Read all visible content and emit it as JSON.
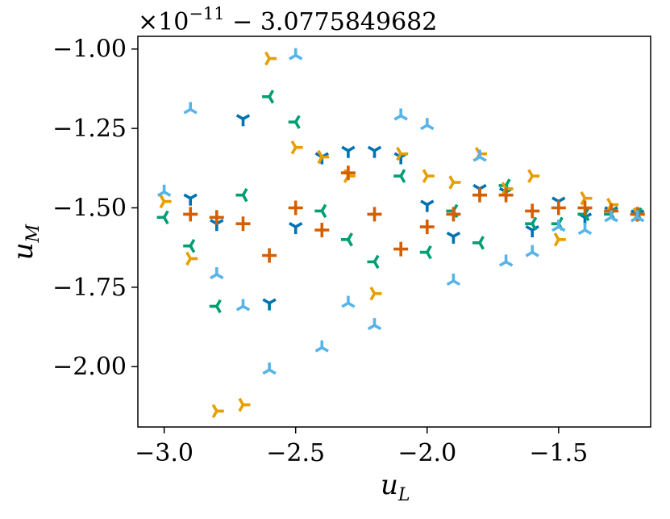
{
  "chart_data": {
    "type": "scatter",
    "title": "",
    "offset_text": {
      "prefix": "×10",
      "exponent": "−11",
      "suffix": " − 3.0775849682"
    },
    "xlabel": "u",
    "xlabel_sub": "L",
    "ylabel": "u",
    "ylabel_sub": "M",
    "xlim": [
      -3.1,
      -1.15
    ],
    "ylim": [
      -2.19,
      -0.96
    ],
    "xticks": [
      -3.0,
      -2.5,
      -2.0,
      -1.5
    ],
    "xtick_labels": [
      "−3.0",
      "−2.5",
      "−2.0",
      "−1.5"
    ],
    "yticks": [
      -1.0,
      -1.25,
      -1.5,
      -1.75,
      -2.0
    ],
    "ytick_labels": [
      "−1.00",
      "−1.25",
      "−1.50",
      "−1.75",
      "−2.00"
    ],
    "grid": false,
    "legend": "none",
    "series": [
      {
        "marker": "tri-down",
        "color": "#0072B2",
        "x": [
          -2.9,
          -2.8,
          -2.7,
          -2.6,
          -2.5,
          -2.4,
          -2.3,
          -2.2,
          -2.1,
          -2.0,
          -1.9,
          -1.8,
          -1.7,
          -1.6,
          -1.5,
          -1.4,
          -1.3,
          -1.2
        ],
        "y": [
          -1.47,
          -1.55,
          -1.22,
          -1.8,
          -1.56,
          -1.34,
          -1.32,
          -1.32,
          -1.34,
          -1.49,
          -1.59,
          -1.44,
          -1.45,
          -1.57,
          -1.48,
          -1.53,
          -1.51,
          -1.52
        ]
      },
      {
        "marker": "tri-left",
        "color": "#009E73",
        "x": [
          -3.0,
          -2.9,
          -2.8,
          -2.7,
          -2.6,
          -2.5,
          -2.4,
          -2.3,
          -2.2,
          -2.1,
          -2.0,
          -1.9,
          -1.8,
          -1.7,
          -1.6,
          -1.5,
          -1.4,
          -1.3,
          -1.2
        ],
        "y": [
          -1.53,
          -1.62,
          -1.81,
          -1.46,
          -1.15,
          -1.23,
          -1.51,
          -1.6,
          -1.67,
          -1.4,
          -1.64,
          -1.51,
          -1.61,
          -1.43,
          -1.55,
          -1.55,
          -1.52,
          -1.52,
          -1.52
        ]
      },
      {
        "marker": "tri-right",
        "color": "#E69F00",
        "x": [
          -3.0,
          -2.9,
          -2.8,
          -2.7,
          -2.6,
          -2.5,
          -2.4,
          -2.3,
          -2.2,
          -2.1,
          -2.0,
          -1.9,
          -1.8,
          -1.7,
          -1.6,
          -1.5,
          -1.4,
          -1.3,
          -1.2
        ],
        "y": [
          -1.48,
          -1.66,
          -2.14,
          -2.12,
          -1.03,
          -1.31,
          -1.34,
          -1.4,
          -1.77,
          -1.33,
          -1.4,
          -1.42,
          -1.33,
          -1.44,
          -1.4,
          -1.6,
          -1.47,
          -1.49,
          -1.52
        ]
      },
      {
        "marker": "plus",
        "color": "#D55E00",
        "x": [
          -2.9,
          -2.8,
          -2.7,
          -2.6,
          -2.5,
          -2.4,
          -2.3,
          -2.2,
          -2.1,
          -2.0,
          -1.9,
          -1.8,
          -1.7,
          -1.6,
          -1.5,
          -1.4,
          -1.3,
          -1.2
        ],
        "y": [
          -1.52,
          -1.53,
          -1.55,
          -1.65,
          -1.5,
          -1.57,
          -1.39,
          -1.52,
          -1.63,
          -1.56,
          -1.52,
          -1.46,
          -1.46,
          -1.51,
          -1.5,
          -1.5,
          -1.51,
          -1.52
        ]
      },
      {
        "marker": "tri-up",
        "color": "#56B4E9",
        "x": [
          -3.0,
          -2.9,
          -2.8,
          -2.7,
          -2.6,
          -2.5,
          -2.4,
          -2.3,
          -2.2,
          -2.1,
          -2.0,
          -1.9,
          -1.8,
          -1.7,
          -1.6,
          -1.5,
          -1.4,
          -1.3,
          -1.2
        ],
        "y": [
          -1.45,
          -1.19,
          -1.71,
          -1.81,
          -2.01,
          -1.02,
          -1.94,
          -1.8,
          -1.87,
          -1.21,
          -1.24,
          -1.73,
          -1.34,
          -1.67,
          -1.64,
          -1.56,
          -1.57,
          -1.53,
          -1.53
        ]
      }
    ]
  }
}
